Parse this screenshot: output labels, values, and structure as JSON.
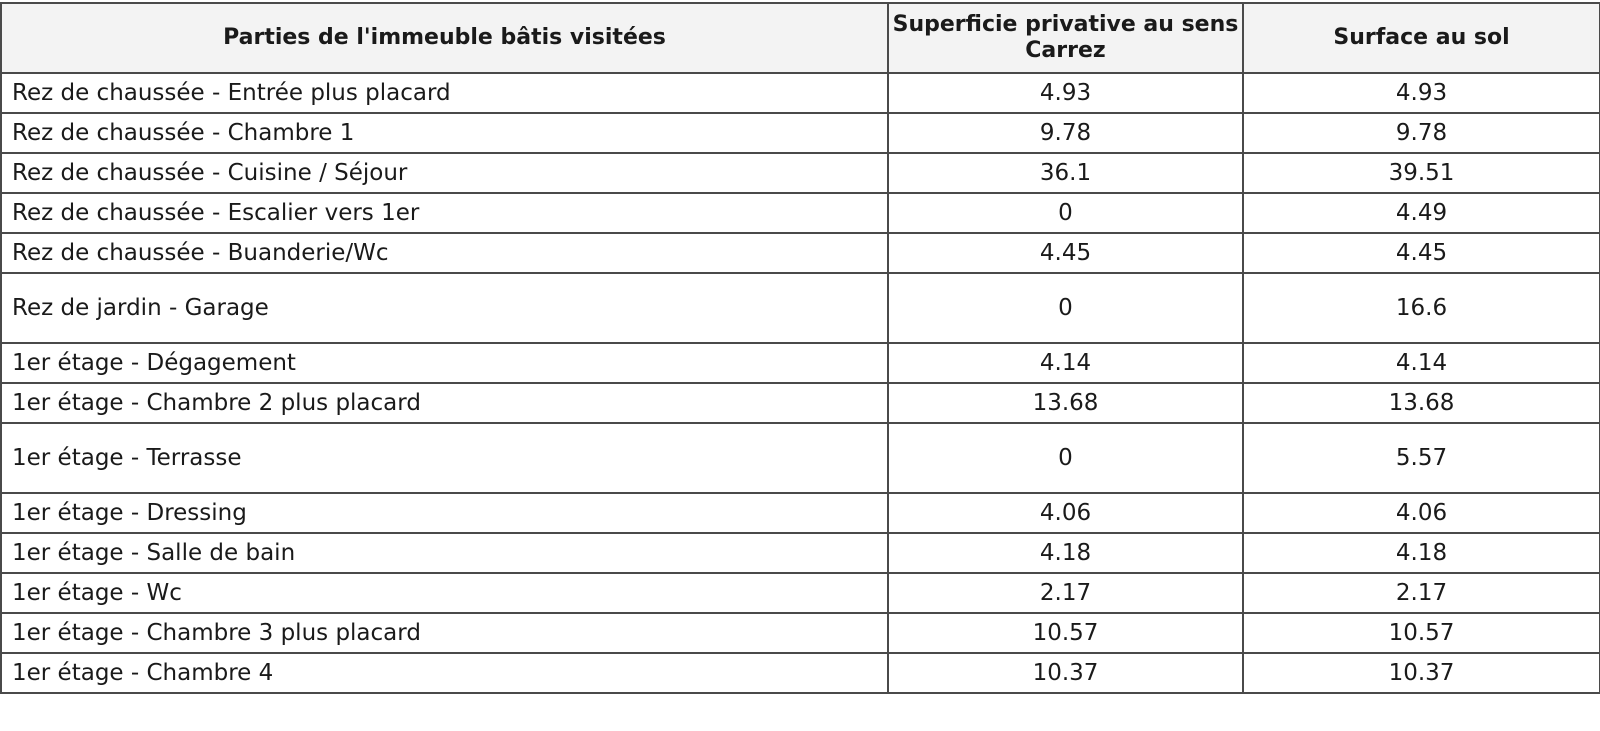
{
  "table": {
    "headers": [
      "Parties de l'immeuble bâtis visitées",
      "Superficie privative au sens Carrez",
      "Surface au sol"
    ],
    "rows": [
      {
        "room": "Rez de chaussée - Entrée plus placard",
        "carrez": "4.93",
        "sol": "4.93"
      },
      {
        "room": "Rez de chaussée - Chambre 1",
        "carrez": "9.78",
        "sol": "9.78"
      },
      {
        "room": "Rez de chaussée - Cuisine / Séjour",
        "carrez": "36.1",
        "sol": "39.51"
      },
      {
        "room": "Rez de chaussée - Escalier vers 1er",
        "carrez": "0",
        "sol": "4.49"
      },
      {
        "room": "Rez de chaussée - Buanderie/Wc",
        "carrez": "4.45",
        "sol": "4.45"
      },
      {
        "room": "Rez de jardin - Garage",
        "carrez": "0",
        "sol": "16.6"
      },
      {
        "room": "1er étage - Dégagement",
        "carrez": "4.14",
        "sol": "4.14"
      },
      {
        "room": "1er étage - Chambre 2 plus placard",
        "carrez": "13.68",
        "sol": "13.68"
      },
      {
        "room": "1er étage - Terrasse",
        "carrez": "0",
        "sol": "5.57"
      },
      {
        "room": "1er étage - Dressing",
        "carrez": "4.06",
        "sol": "4.06"
      },
      {
        "room": "1er étage - Salle de bain",
        "carrez": "4.18",
        "sol": "4.18"
      },
      {
        "room": "1er étage - Wc",
        "carrez": "2.17",
        "sol": "2.17"
      },
      {
        "room": "1er étage - Chambre 3 plus placard",
        "carrez": "10.57",
        "sol": "10.57"
      },
      {
        "room": "1er étage - Chambre 4",
        "carrez": "10.37",
        "sol": "10.37"
      }
    ]
  }
}
